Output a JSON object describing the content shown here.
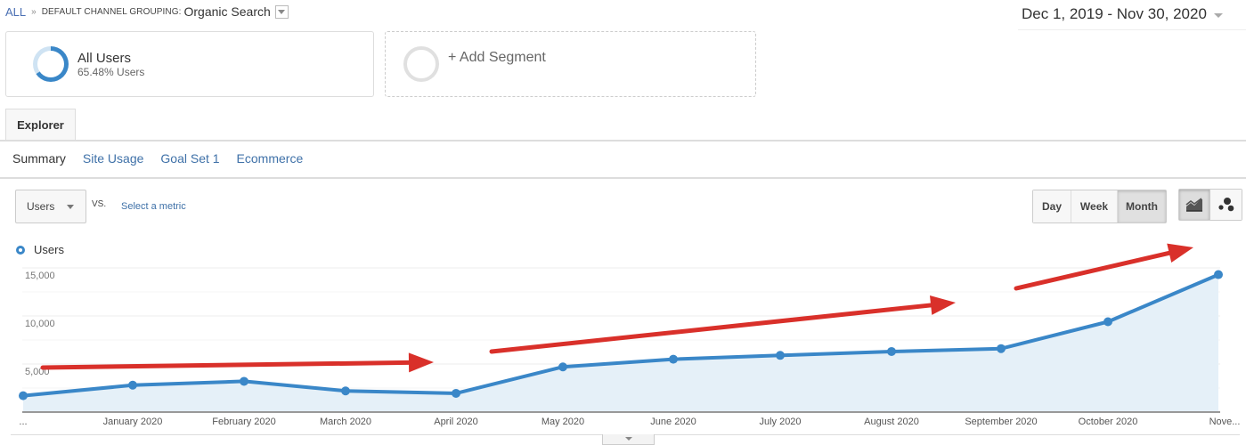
{
  "breadcrumb": {
    "root": "ALL",
    "separator": "»",
    "dimension": "DEFAULT CHANNEL GROUPING:",
    "value": "Organic Search"
  },
  "date_range": "Dec 1, 2019 - Nov 30, 2020",
  "segments": [
    {
      "title": "All Users",
      "subtitle": "65.48% Users",
      "percent": 65.48
    },
    {
      "title": "+ Add Segment"
    }
  ],
  "tabs": [
    {
      "label": "Explorer",
      "active": true
    }
  ],
  "subnav": [
    {
      "label": "Summary",
      "active": true
    },
    {
      "label": "Site Usage"
    },
    {
      "label": "Goal Set 1"
    },
    {
      "label": "Ecommerce"
    }
  ],
  "metric_selector": {
    "value": "Users",
    "vs_label": "VS.",
    "secondary_placeholder": "Select a metric"
  },
  "granularity": {
    "options": [
      "Day",
      "Week",
      "Month"
    ],
    "selected": "Month"
  },
  "chart_type_buttons": [
    {
      "icon": "line-chart-icon",
      "active": true
    },
    {
      "icon": "motion-chart-icon",
      "active": false
    }
  ],
  "legend": {
    "label": "Users",
    "color": "#3a87c8"
  },
  "colors": {
    "series": "#3a87c8",
    "fill": "#e5f0f8",
    "annotation_arrow": "#d9302a",
    "grid": "#eeeeee"
  },
  "chart_data": {
    "type": "area",
    "title": "",
    "xlabel": "",
    "ylabel": "Users",
    "categories": [
      "...",
      "January 2020",
      "February 2020",
      "March 2020",
      "April 2020",
      "May 2020",
      "June 2020",
      "July 2020",
      "August 2020",
      "September 2020",
      "October 2020",
      "Nove..."
    ],
    "series": [
      {
        "name": "Users",
        "values": [
          1700,
          2800,
          3200,
          2200,
          1950,
          4700,
          5500,
          5900,
          6300,
          6600,
          9400,
          14300
        ]
      }
    ],
    "y_ticks": [
      "15,000",
      "10,000",
      "5,000"
    ],
    "ylim": [
      0,
      17000
    ],
    "grid": true,
    "legend_position": "top-left",
    "annotations": [
      {
        "type": "arrow",
        "description": "flat trend Dec-Apr",
        "from": [
          48,
          413
        ],
        "to": [
          487,
          407
        ]
      },
      {
        "type": "arrow",
        "description": "rising trend Apr-Sep",
        "from": [
          552,
          395
        ],
        "to": [
          1073,
          340
        ]
      },
      {
        "type": "arrow",
        "description": "steep rise Sep-Nov",
        "from": [
          1141,
          324
        ],
        "to": [
          1340,
          278
        ]
      }
    ]
  }
}
